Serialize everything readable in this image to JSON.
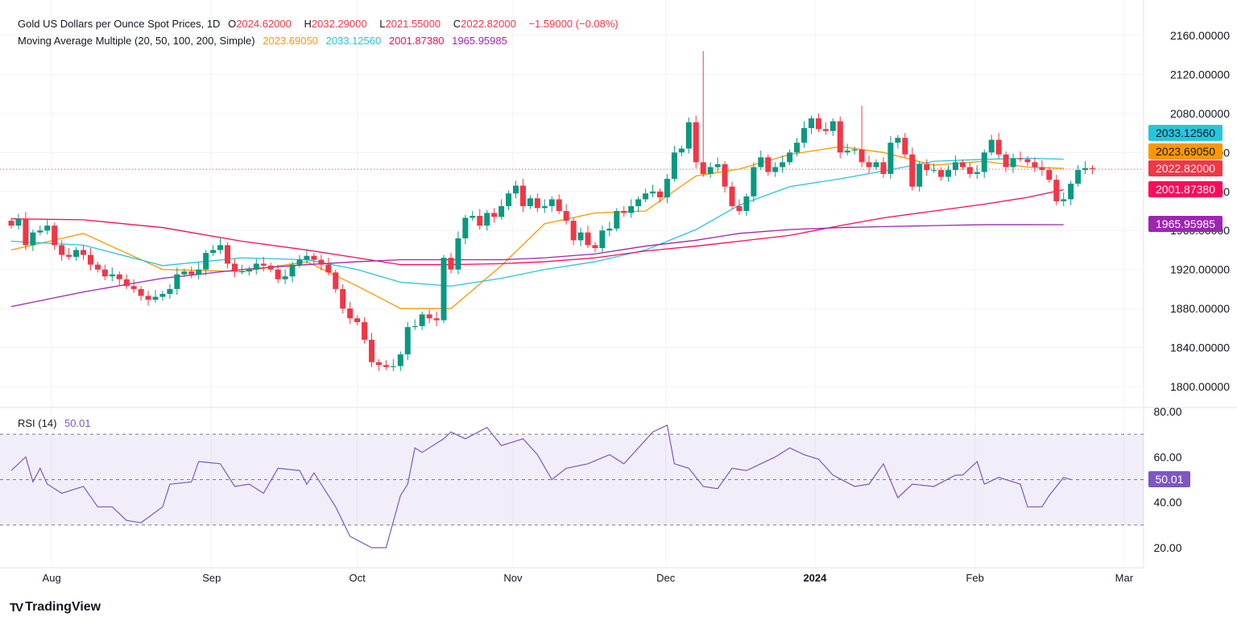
{
  "header": {
    "title": "Gold US Dollars per Ounce Spot Prices, 1D",
    "o_label": "O",
    "o": "2024.62000",
    "h_label": "H",
    "h": "2032.29000",
    "l_label": "L",
    "l": "2021.55000",
    "c_label": "C",
    "c": "2022.82000",
    "change": "−1.59000 (−0.08%)"
  },
  "ma_legend": {
    "title": "Moving Average Multiple (20, 50, 100, 200, Simple)",
    "ma20": "2023.69050",
    "ma50": "2033.12560",
    "ma100": "2001.87380",
    "ma200": "1965.95985"
  },
  "rsi_legend": {
    "title": "RSI (14)",
    "value": "50.01"
  },
  "tags": {
    "ma50": "2033.12560",
    "ma20": "2023.69050",
    "last": "2022.82000",
    "ma100": "2001.87380",
    "ma200": "1965.95985"
  },
  "colors": {
    "up": "#089981",
    "down": "#F23645",
    "ma20": "#FF9800",
    "ma50": "#26C6DA",
    "ma100": "#FF0A5A",
    "ma200": "#9C27B0",
    "rsi": "#7E57C2"
  },
  "logo": "TradingView",
  "chart_data": {
    "type": "candlestick",
    "title": "Gold US Dollars per Ounce Spot Prices, 1D",
    "ylim": [
      1780,
      2175
    ],
    "yticks": [
      "1800.00000",
      "1840.00000",
      "1880.00000",
      "1920.00000",
      "1960.00000",
      "2000.00000",
      "2040.00000",
      "2080.00000",
      "2120.00000",
      "2160.00000"
    ],
    "xticks": [
      [
        "Aug",
        5.6
      ],
      [
        "Sep",
        27.8
      ],
      [
        "Oct",
        48
      ],
      [
        "Nov",
        69.6
      ],
      [
        "Dec",
        90.8
      ],
      [
        "2024",
        111.5
      ],
      [
        "Feb",
        133.7
      ],
      [
        "Mar",
        154.4
      ]
    ],
    "closes": [
      1965,
      1972,
      1945,
      1958,
      1960,
      1965,
      1945,
      1935,
      1933,
      1940,
      1935,
      1925,
      1920,
      1913,
      1915,
      1910,
      1903,
      1900,
      1893,
      1889,
      1892,
      1895,
      1900,
      1915,
      1918,
      1915,
      1920,
      1937,
      1940,
      1945,
      1926,
      1918,
      1918,
      1920,
      1926,
      1924,
      1920,
      1910,
      1913,
      1925,
      1930,
      1934,
      1930,
      1925,
      1917,
      1900,
      1880,
      1870,
      1866,
      1848,
      1825,
      1822,
      1820,
      1821,
      1833,
      1861,
      1862,
      1874,
      1870,
      1868,
      1932,
      1920,
      1952,
      1973,
      1975,
      1965,
      1978,
      1974,
      1985,
      1998,
      2006,
      1985,
      1993,
      1983,
      1985,
      1992,
      1980,
      1970,
      1950,
      1958,
      1945,
      1942,
      1960,
      1962,
      1980,
      1978,
      1985,
      1992,
      1998,
      2000,
      1994,
      2013,
      2040,
      2044,
      2071,
      2030,
      2018,
      2025,
      2028,
      2005,
      1985,
      1980,
      1995,
      2025,
      2035,
      2020,
      2025,
      2030,
      2040,
      2050,
      2065,
      2075,
      2064,
      2062,
      2072,
      2040,
      2042,
      2043,
      2030,
      2025,
      2030,
      2018,
      2050,
      2055,
      2038,
      2005,
      2028,
      2022,
      2022,
      2015,
      2022,
      2030,
      2025,
      2018,
      2020,
      2040,
      2053,
      2038,
      2025,
      2034,
      2033,
      2030,
      2025,
      2022,
      2012,
      1990,
      1992,
      2008,
      2022,
      2024,
      2022.82
    ],
    "high_overrides": {
      "96": 2144,
      "118": 2088
    },
    "last_price": 2022.82,
    "series": [
      {
        "name": "MA20",
        "points": [
          [
            0,
            1940
          ],
          [
            10,
            1957
          ],
          [
            21,
            1920
          ],
          [
            32,
            1918
          ],
          [
            41,
            1928
          ],
          [
            48,
            1903
          ],
          [
            54,
            1880
          ],
          [
            61,
            1880
          ],
          [
            68,
            1924
          ],
          [
            74,
            1967
          ],
          [
            81,
            1978
          ],
          [
            88,
            1980
          ],
          [
            95,
            2016
          ],
          [
            101,
            2023
          ],
          [
            108,
            2038
          ],
          [
            115,
            2046
          ],
          [
            121,
            2040
          ],
          [
            128,
            2027
          ],
          [
            135,
            2031
          ],
          [
            141,
            2025
          ],
          [
            146,
            2023.69
          ]
        ]
      },
      {
        "name": "MA50",
        "points": [
          [
            0,
            1949
          ],
          [
            10,
            1945
          ],
          [
            21,
            1924
          ],
          [
            32,
            1932
          ],
          [
            41,
            1930
          ],
          [
            48,
            1920
          ],
          [
            54,
            1907
          ],
          [
            61,
            1903
          ],
          [
            68,
            1911
          ],
          [
            74,
            1920
          ],
          [
            81,
            1928
          ],
          [
            88,
            1940
          ],
          [
            95,
            1961
          ],
          [
            101,
            1986
          ],
          [
            108,
            2005
          ],
          [
            115,
            2013
          ],
          [
            121,
            2021
          ],
          [
            128,
            2031
          ],
          [
            135,
            2033
          ],
          [
            141,
            2034
          ],
          [
            146,
            2033.13
          ]
        ]
      },
      {
        "name": "MA100",
        "points": [
          [
            0,
            1972
          ],
          [
            10,
            1971
          ],
          [
            21,
            1963
          ],
          [
            32,
            1949
          ],
          [
            41,
            1940
          ],
          [
            48,
            1932
          ],
          [
            54,
            1925
          ],
          [
            61,
            1925
          ],
          [
            68,
            1926
          ],
          [
            74,
            1928
          ],
          [
            81,
            1932
          ],
          [
            88,
            1939
          ],
          [
            95,
            1944
          ],
          [
            101,
            1949
          ],
          [
            108,
            1955
          ],
          [
            115,
            1965
          ],
          [
            121,
            1973
          ],
          [
            128,
            1980
          ],
          [
            135,
            1987
          ],
          [
            141,
            1994
          ],
          [
            146,
            2001.87
          ]
        ]
      },
      {
        "name": "MA200",
        "points": [
          [
            0,
            1882
          ],
          [
            10,
            1897
          ],
          [
            21,
            1911
          ],
          [
            32,
            1920
          ],
          [
            41,
            1925
          ],
          [
            48,
            1928
          ],
          [
            54,
            1930
          ],
          [
            61,
            1930
          ],
          [
            68,
            1930
          ],
          [
            74,
            1932
          ],
          [
            81,
            1936
          ],
          [
            88,
            1944
          ],
          [
            95,
            1950
          ],
          [
            101,
            1957
          ],
          [
            108,
            1961
          ],
          [
            115,
            1963
          ],
          [
            121,
            1964
          ],
          [
            128,
            1965
          ],
          [
            135,
            1966
          ],
          [
            146,
            1965.96
          ]
        ]
      }
    ],
    "rsi": {
      "name": "RSI (14)",
      "ylim": [
        15,
        82
      ],
      "yticks": [
        "20.00",
        "40.00",
        "60.00",
        "80.00"
      ],
      "band": [
        30,
        70
      ],
      "mid": 50,
      "points": [
        [
          0,
          54
        ],
        [
          2,
          60
        ],
        [
          3,
          49
        ],
        [
          4,
          55
        ],
        [
          5,
          48
        ],
        [
          7,
          44
        ],
        [
          10,
          47
        ],
        [
          12,
          38
        ],
        [
          14,
          38
        ],
        [
          16,
          32
        ],
        [
          18,
          31
        ],
        [
          21,
          38
        ],
        [
          22,
          48
        ],
        [
          25,
          49
        ],
        [
          26,
          58
        ],
        [
          29,
          57
        ],
        [
          31,
          47
        ],
        [
          33,
          48
        ],
        [
          35,
          44
        ],
        [
          37,
          55
        ],
        [
          40,
          54
        ],
        [
          41,
          48
        ],
        [
          42,
          53
        ],
        [
          45,
          38
        ],
        [
          47,
          25
        ],
        [
          50,
          20
        ],
        [
          52,
          20
        ],
        [
          54,
          43
        ],
        [
          55,
          48
        ],
        [
          56,
          64
        ],
        [
          57,
          62
        ],
        [
          60,
          68
        ],
        [
          61,
          71
        ],
        [
          63,
          68
        ],
        [
          66,
          73
        ],
        [
          68,
          65
        ],
        [
          71,
          68
        ],
        [
          73,
          61
        ],
        [
          75,
          50
        ],
        [
          77,
          55
        ],
        [
          80,
          57
        ],
        [
          83,
          61
        ],
        [
          85,
          57
        ],
        [
          89,
          71
        ],
        [
          91,
          74
        ],
        [
          92,
          57
        ],
        [
          94,
          55
        ],
        [
          96,
          47
        ],
        [
          98,
          46
        ],
        [
          100,
          55
        ],
        [
          102,
          54
        ],
        [
          106,
          60
        ],
        [
          108,
          64
        ],
        [
          110,
          61
        ],
        [
          112,
          59
        ],
        [
          114,
          52
        ],
        [
          117,
          47
        ],
        [
          119,
          48
        ],
        [
          121,
          57
        ],
        [
          123,
          42
        ],
        [
          125,
          48
        ],
        [
          128,
          47
        ],
        [
          131,
          52
        ],
        [
          132,
          52
        ],
        [
          134,
          58
        ],
        [
          135,
          48
        ],
        [
          137,
          51
        ],
        [
          140,
          48
        ],
        [
          141,
          38
        ],
        [
          143,
          38
        ],
        [
          144,
          43
        ],
        [
          146,
          51
        ],
        [
          147,
          50.01
        ]
      ]
    }
  }
}
